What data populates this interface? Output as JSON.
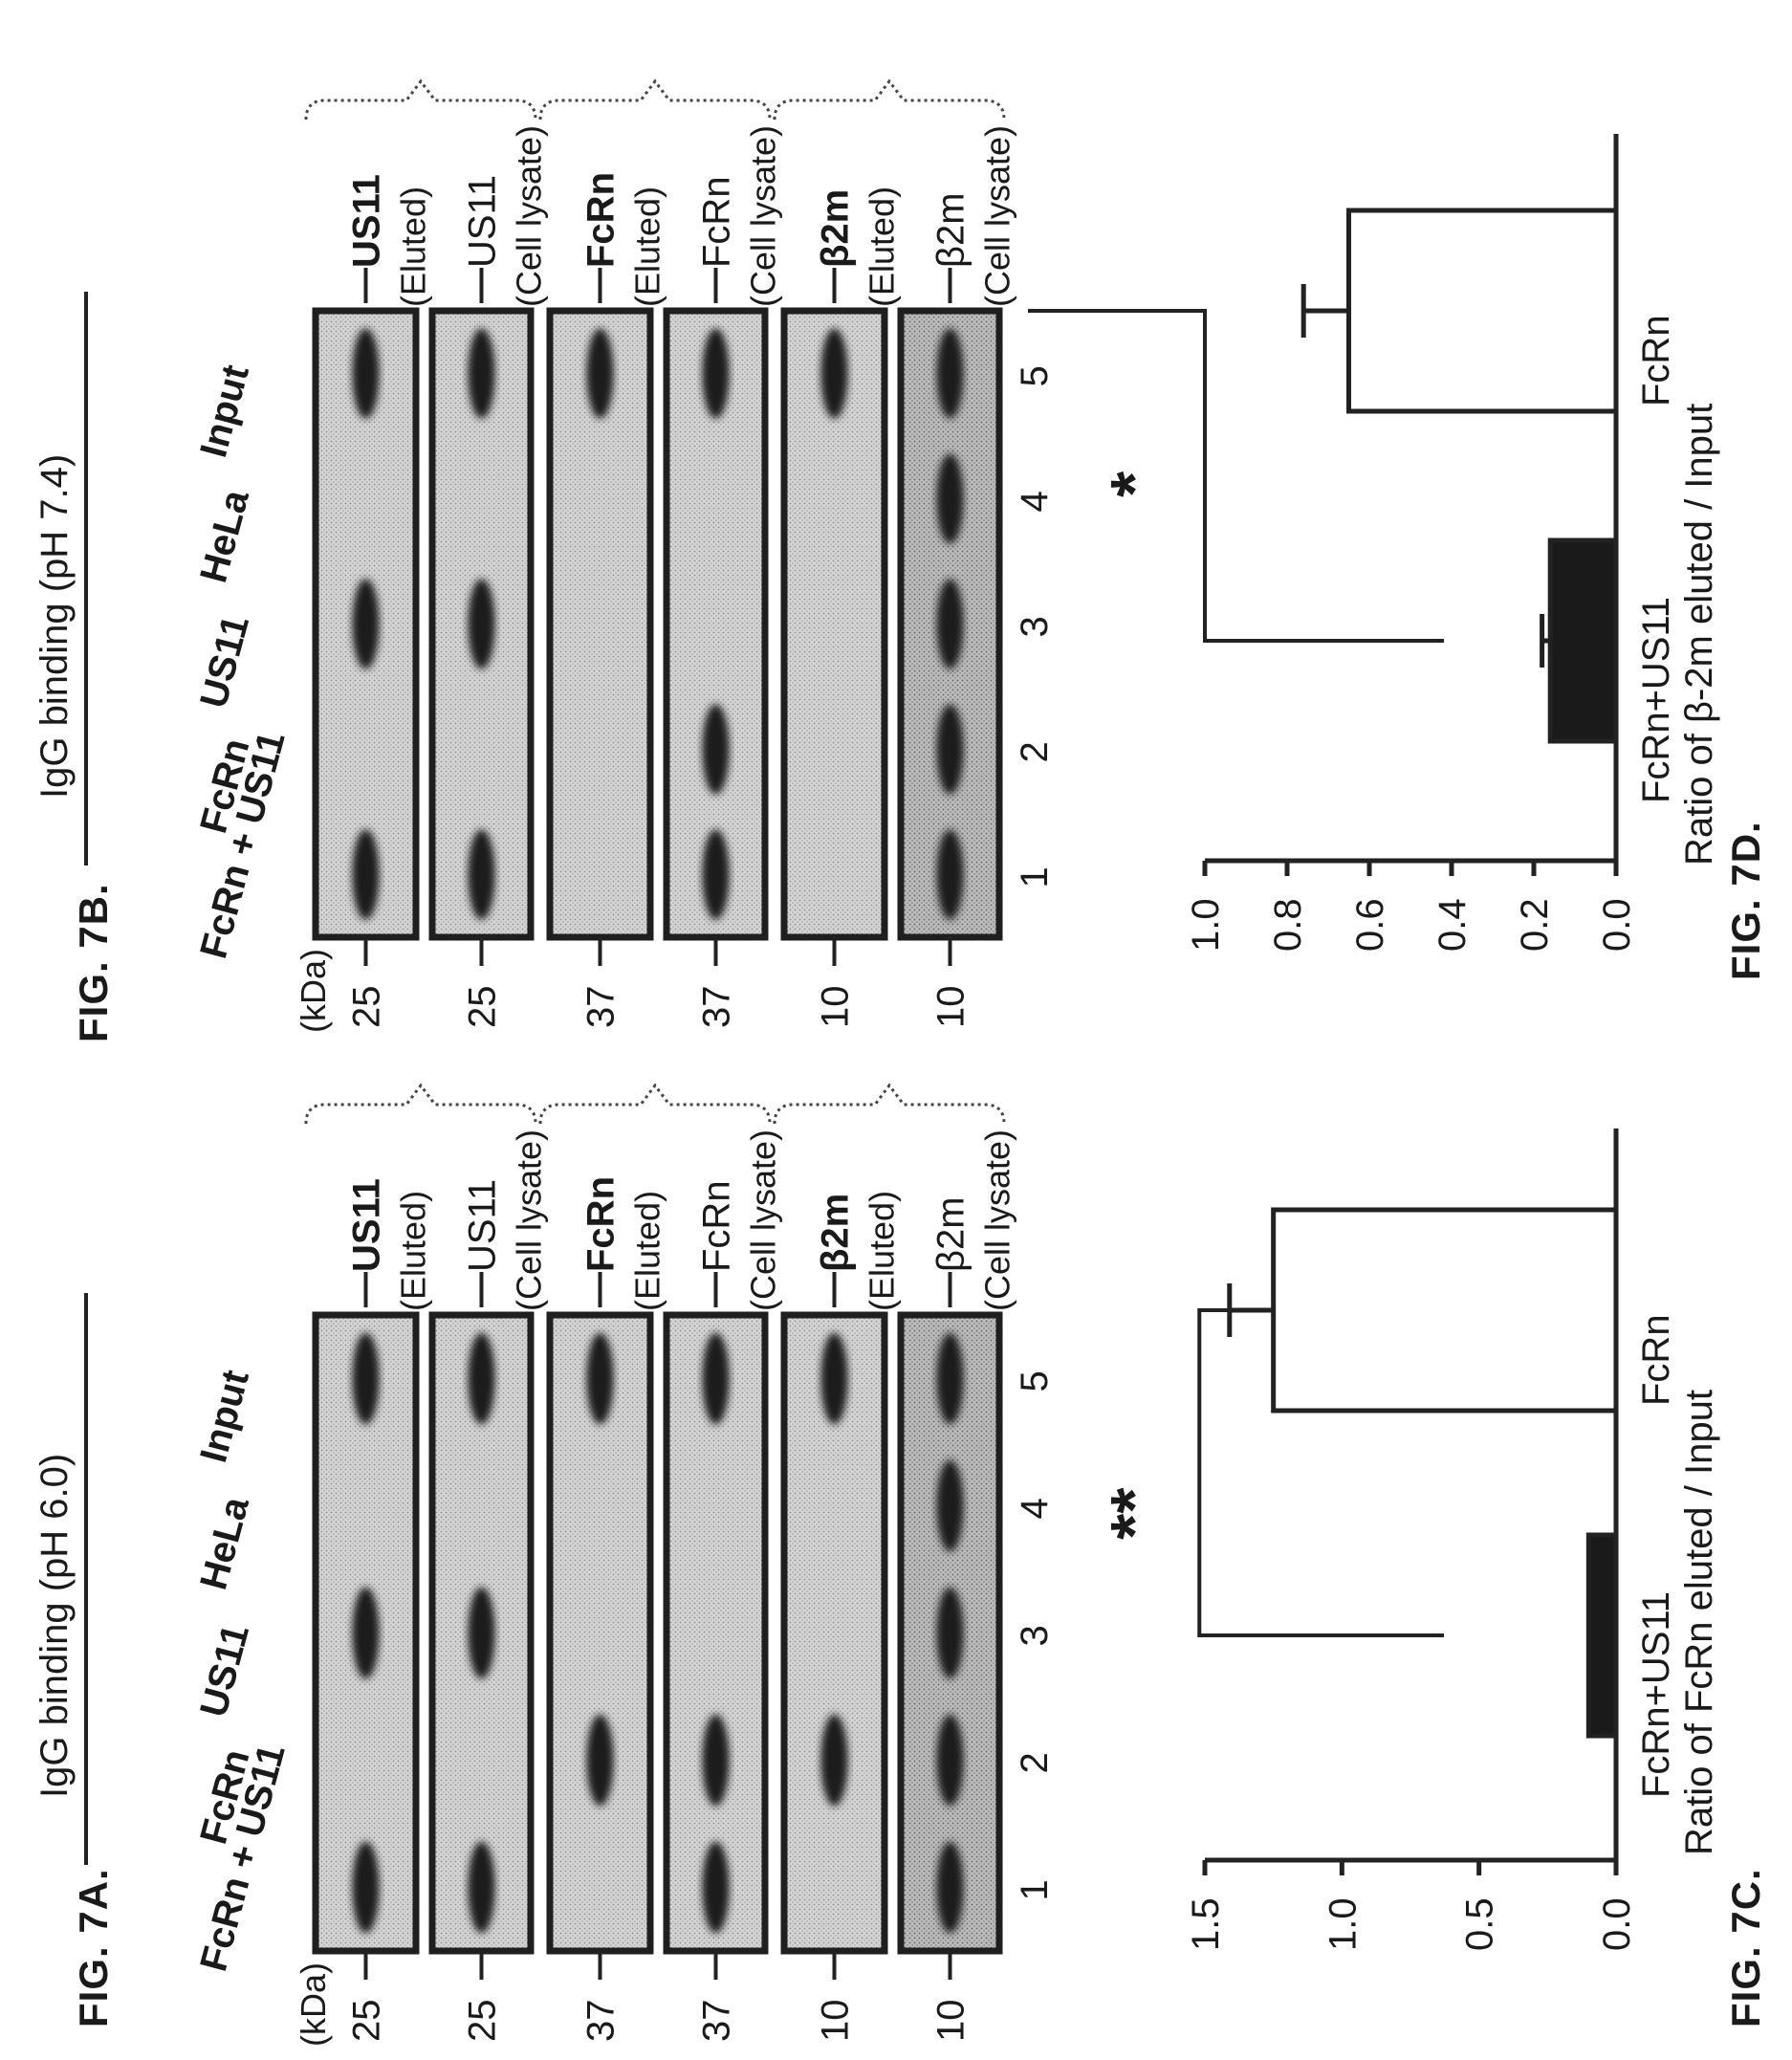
{
  "fig7a": {
    "label": "FIG. 7A.",
    "title": "IgG binding (pH 6.0)",
    "unit": "(kDa)",
    "lanes": [
      "FcRn + US11",
      "FcRn",
      "US11",
      "HeLa",
      "Input"
    ],
    "lane_numbers": [
      "1",
      "2",
      "3",
      "4",
      "5"
    ],
    "blots": [
      {
        "marker": "25",
        "protein": "US11",
        "sub": "(Eluted)",
        "bold": true
      },
      {
        "marker": "25",
        "protein": "US11",
        "sub": "(Cell lysate)",
        "bold": false
      },
      {
        "marker": "37",
        "protein": "FcRn",
        "sub": "(Eluted)",
        "bold": true
      },
      {
        "marker": "37",
        "protein": "FcRn",
        "sub": "(Cell lysate)",
        "bold": false
      },
      {
        "marker": "10",
        "protein": "β2m",
        "sub": "(Eluted)",
        "bold": true
      },
      {
        "marker": "10",
        "protein": "β2m",
        "sub": "(Cell lysate)",
        "bold": false
      }
    ]
  },
  "fig7b": {
    "label": "FIG. 7B.",
    "title": "IgG binding (pH 7.4)",
    "unit": "(kDa)",
    "lanes": [
      "FcRn + US11",
      "FcRn",
      "US11",
      "HeLa",
      "Input"
    ],
    "lane_numbers": [
      "1",
      "2",
      "3",
      "4",
      "5"
    ],
    "blots": [
      {
        "marker": "25",
        "protein": "US11",
        "sub": "(Eluted)",
        "bold": true
      },
      {
        "marker": "25",
        "protein": "US11",
        "sub": "(Cell lysate)",
        "bold": false
      },
      {
        "marker": "37",
        "protein": "FcRn",
        "sub": "(Eluted)",
        "bold": true
      },
      {
        "marker": "37",
        "protein": "FcRn",
        "sub": "(Cell lysate)",
        "bold": false
      },
      {
        "marker": "10",
        "protein": "β2m",
        "sub": "(Eluted)",
        "bold": true
      },
      {
        "marker": "10",
        "protein": "β2m",
        "sub": "(Cell lysate)",
        "bold": false
      }
    ]
  },
  "fig7c": {
    "label": "FIG. 7C.",
    "ylabel": "Ratio of FcRn eluted / Input",
    "significance": "**",
    "ticks": [
      "0.0",
      "0.5",
      "1.0",
      "1.5"
    ]
  },
  "fig7d": {
    "label": "FIG. 7D.",
    "ylabel": "Ratio of β-2m eluted / Input",
    "significance": "*",
    "ticks": [
      "0.0",
      "0.2",
      "0.4",
      "0.6",
      "0.8",
      "1.0"
    ]
  },
  "chart_data": [
    {
      "type": "bar",
      "categories": [
        "FcRn+US11",
        "FcRn"
      ],
      "values": [
        0.1,
        1.25
      ],
      "errors": [
        0.0,
        0.16
      ],
      "fills": [
        "#1a1a1a",
        "#ffffff"
      ],
      "title": "",
      "xlabel": "",
      "ylabel": "Ratio of FcRn eluted / Input",
      "ylim": [
        0,
        1.5
      ],
      "grid": false
    },
    {
      "type": "bar",
      "categories": [
        "FcRn+US11",
        "FcRn"
      ],
      "values": [
        0.16,
        0.65
      ],
      "errors": [
        0.02,
        0.11
      ],
      "fills": [
        "#1a1a1a",
        "#ffffff"
      ],
      "title": "",
      "xlabel": "",
      "ylabel": "Ratio of β-2m eluted / Input",
      "ylim": [
        0,
        1.0
      ],
      "grid": false
    }
  ]
}
